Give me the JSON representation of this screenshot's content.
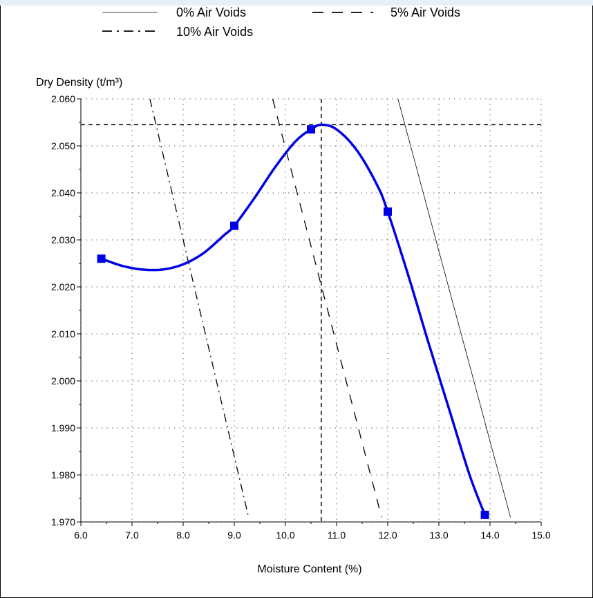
{
  "chart_data": {
    "type": "line",
    "title": "",
    "xlabel": "Moisture Content (%)",
    "ylabel": "Dry Density (t/m³)",
    "xlim": [
      6.0,
      15.0
    ],
    "ylim": [
      1.97,
      2.06
    ],
    "x_ticks": [
      "6.0",
      "7.0",
      "8.0",
      "9.0",
      "10.0",
      "11.0",
      "12.0",
      "13.0",
      "14.0",
      "15.0"
    ],
    "y_ticks": [
      "1.970",
      "1.980",
      "1.990",
      "2.000",
      "2.010",
      "2.020",
      "2.030",
      "2.040",
      "2.050",
      "2.060"
    ],
    "grid": true,
    "legend_position": "top",
    "legend": [
      {
        "name": "0% Air Voids",
        "style": "solid"
      },
      {
        "name": "5% Air Voids",
        "style": "dashed"
      },
      {
        "name": "10% Air Voids",
        "style": "dash-dot"
      }
    ],
    "colors": {
      "compaction_curve": "#0000e6",
      "air_voids": "#000000"
    },
    "compaction_points": {
      "x": [
        6.4,
        9.0,
        10.5,
        12.0,
        13.9
      ],
      "y": [
        2.026,
        2.033,
        2.0535,
        2.036,
        1.9715
      ]
    },
    "compaction_curve": {
      "x": [
        6.4,
        6.8,
        7.2,
        7.6,
        8.0,
        8.4,
        8.8,
        9.0,
        9.4,
        9.8,
        10.2,
        10.5,
        10.7,
        11.0,
        11.4,
        11.8,
        12.0,
        12.4,
        12.8,
        13.2,
        13.6,
        13.9
      ],
      "y": [
        2.026,
        2.0245,
        2.0237,
        2.0237,
        2.0248,
        2.0272,
        2.031,
        2.033,
        2.039,
        2.0455,
        2.051,
        2.0535,
        2.0545,
        2.0535,
        2.049,
        2.0415,
        2.036,
        2.0225,
        2.008,
        1.994,
        1.98,
        1.9715
      ]
    },
    "air_void_lines": [
      {
        "name": "0% Air Voids",
        "x": [
          12.2,
          14.4
        ],
        "y": [
          2.06,
          1.971
        ]
      },
      {
        "name": "5% Air Voids",
        "x": [
          9.75,
          11.88
        ],
        "y": [
          2.06,
          1.971
        ]
      },
      {
        "name": "10% Air Voids",
        "x": [
          7.35,
          9.28
        ],
        "y": [
          2.06,
          1.971
        ]
      }
    ],
    "optimum": {
      "moisture": 10.7,
      "dry_density": 2.0545
    }
  }
}
